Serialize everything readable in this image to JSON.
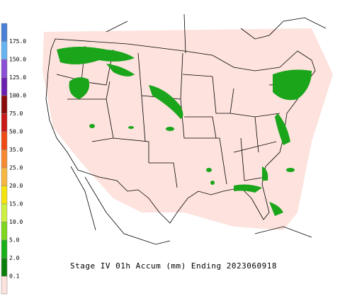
{
  "title": "Stage IV 01h Accum (mm) Ending 2023060918",
  "legend": [
    {
      "label": "175.0",
      "color": "#4a7fd8"
    },
    {
      "label": "150.0",
      "color": "#66b3f2"
    },
    {
      "label": "125.0",
      "color": "#8a4fd6"
    },
    {
      "label": "100.0",
      "color": "#6a1fb0"
    },
    {
      "label": "75.0",
      "color": "#8b0a0a"
    },
    {
      "label": "50.0",
      "color": "#c81818"
    },
    {
      "label": "35.0",
      "color": "#ee4a12"
    },
    {
      "label": "25.0",
      "color": "#f78a30"
    },
    {
      "label": "20.0",
      "color": "#f6b640"
    },
    {
      "label": "15.0",
      "color": "#f4e40c"
    },
    {
      "label": "10.0",
      "color": "#ccf040"
    },
    {
      "label": "5.0",
      "color": "#7ed61e"
    },
    {
      "label": "2.0",
      "color": "#18b018"
    },
    {
      "label": "0.1",
      "color": "#0a800a"
    }
  ]
}
